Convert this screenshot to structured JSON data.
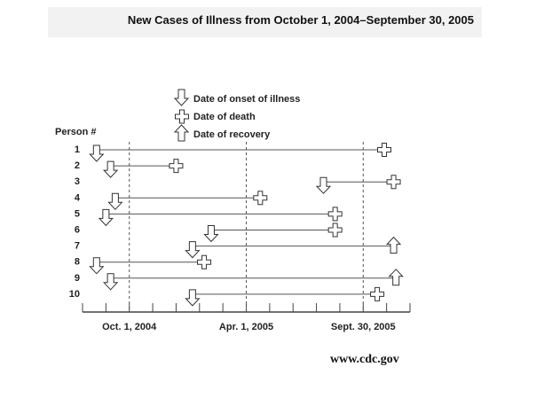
{
  "title": "New Cases of Illness from October 1, 2004–September 30, 2005",
  "legend": {
    "onset": "Date of onset of illness",
    "death": "Date of death",
    "recovery": "Date of recovery"
  },
  "person_header": "Person #",
  "timeline": {
    "x_min": 0,
    "x_max": 14,
    "milestones": [
      {
        "label": "Oct. 1, 2004",
        "pos": 2
      },
      {
        "label": "Apr. 1, 2005",
        "pos": 7
      },
      {
        "label": "Sept. 30, 2005",
        "pos": 12
      }
    ],
    "ticks": [
      0,
      1,
      2,
      3,
      4,
      5,
      6,
      7,
      8,
      9,
      10,
      11,
      12,
      13,
      14
    ]
  },
  "cases": [
    {
      "person": "1",
      "start": 0.6,
      "end": 12.9,
      "outcome": "death"
    },
    {
      "person": "2",
      "start": 1.2,
      "end": 4.0,
      "outcome": "death"
    },
    {
      "person": "3",
      "start": 10.3,
      "end": 13.3,
      "outcome": "death"
    },
    {
      "person": "4",
      "start": 1.4,
      "end": 7.6,
      "outcome": "death"
    },
    {
      "person": "5",
      "start": 1.0,
      "end": 10.8,
      "outcome": "death"
    },
    {
      "person": "6",
      "start": 5.5,
      "end": 10.8,
      "outcome": "death"
    },
    {
      "person": "7",
      "start": 4.7,
      "end": 13.3,
      "outcome": "recovery"
    },
    {
      "person": "8",
      "start": 0.6,
      "end": 5.2,
      "outcome": "death"
    },
    {
      "person": "9",
      "start": 1.2,
      "end": 13.4,
      "outcome": "recovery"
    },
    {
      "person": "10",
      "start": 4.7,
      "end": 12.6,
      "outcome": "death"
    }
  ],
  "source": "www.cdc.gov"
}
